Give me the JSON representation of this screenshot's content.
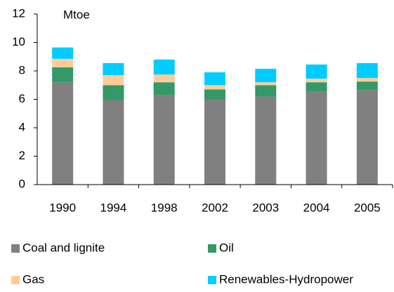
{
  "chart_data": {
    "type": "stacked_bar",
    "annotation": "Mtoe",
    "categories": [
      "1990",
      "1994",
      "1998",
      "2002",
      "2003",
      "2004",
      "2005"
    ],
    "series": [
      {
        "name": "Coal and lignite",
        "color": "#808080",
        "values": [
          7.2,
          5.95,
          6.3,
          6.0,
          6.2,
          6.55,
          6.65
        ]
      },
      {
        "name": "Oil",
        "color": "#339966",
        "values": [
          1.05,
          1.05,
          0.9,
          0.7,
          0.8,
          0.65,
          0.6
        ]
      },
      {
        "name": "Gas",
        "color": "#ffcc99",
        "values": [
          0.6,
          0.7,
          0.55,
          0.3,
          0.2,
          0.25,
          0.25
        ]
      },
      {
        "name": "Renewables-Hydropower",
        "color": "#00ccff",
        "values": [
          0.8,
          0.85,
          1.05,
          0.9,
          0.95,
          1.0,
          1.05
        ]
      }
    ],
    "ylim": [
      0,
      12
    ],
    "yticks": [
      0,
      2,
      4,
      6,
      8,
      10,
      12
    ],
    "grid": false,
    "legend": "bottom"
  }
}
